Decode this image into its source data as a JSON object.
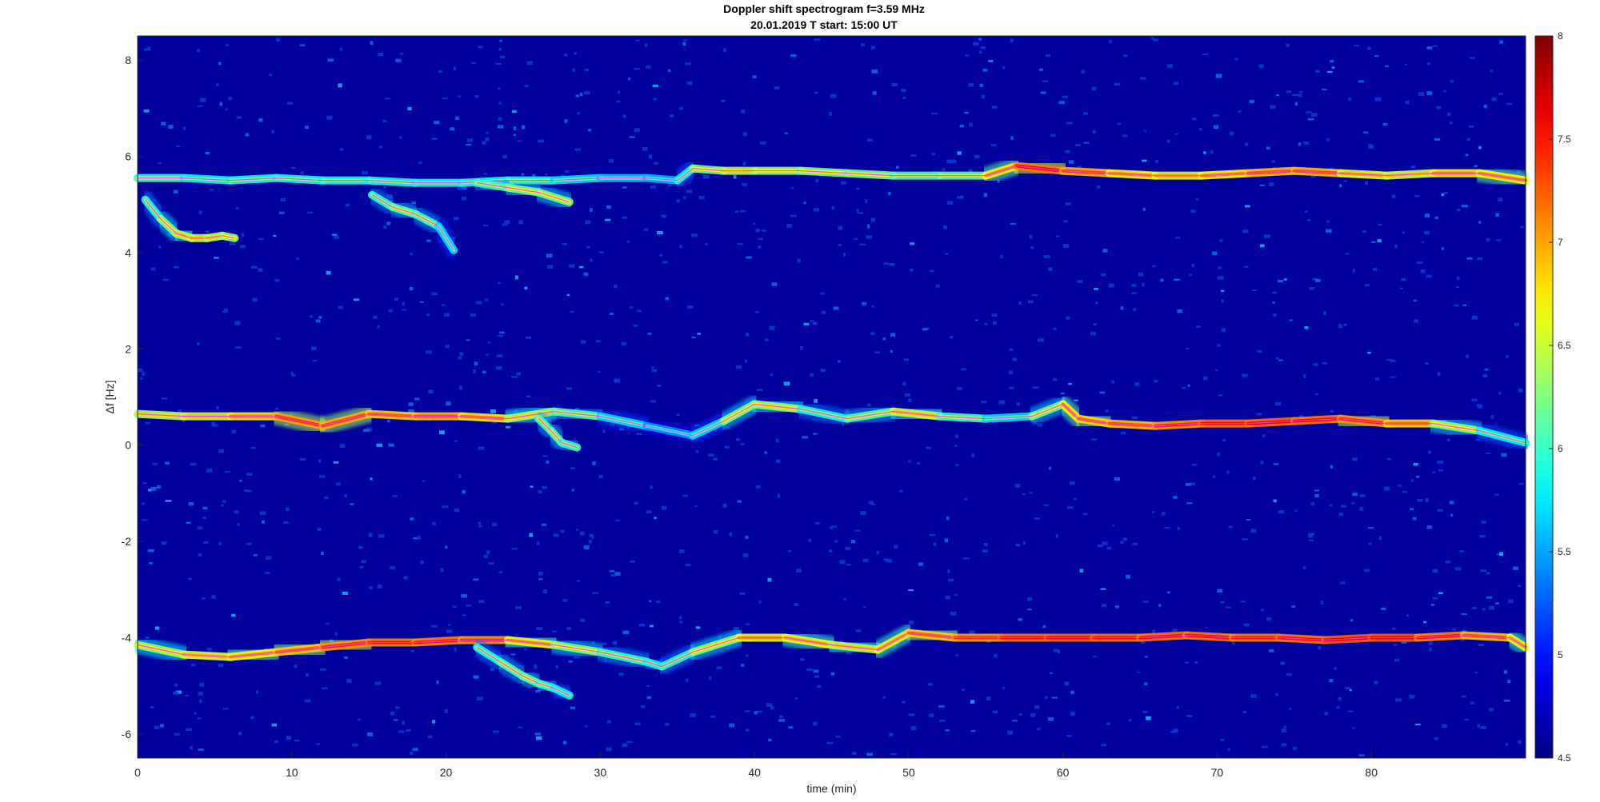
{
  "chart_data": {
    "type": "heatmap",
    "title": "Doppler shift spectrogram f=3.59 MHz",
    "subtitle": "20.01.2019    T start: 15:00 UT",
    "xlabel": "time (min)",
    "ylabel": "Δf [Hz]",
    "xlim": [
      0,
      90
    ],
    "ylim": [
      -6.5,
      8.5
    ],
    "x_ticks": [
      "0",
      "10",
      "20",
      "30",
      "40",
      "50",
      "60",
      "70",
      "80"
    ],
    "y_ticks": [
      "-6",
      "-4",
      "-2",
      "0",
      "2",
      "4",
      "6",
      "8"
    ],
    "colorbar": {
      "colormap": "jet",
      "range": [
        4.5,
        8
      ],
      "ticks": [
        "4.5",
        "5",
        "5.5",
        "6",
        "6.5",
        "7",
        "7.5",
        "8"
      ]
    },
    "background_level": 4.6,
    "traces": [
      {
        "name": "",
        "x": [
          0,
          3,
          6,
          9,
          12,
          15,
          18,
          21,
          24,
          27,
          30,
          33,
          35,
          36,
          38,
          40,
          43,
          46,
          49,
          52,
          55,
          57,
          60,
          63,
          66,
          69,
          72,
          75,
          78,
          81,
          84,
          87,
          90
        ],
        "y": [
          5.55,
          5.55,
          5.5,
          5.55,
          5.5,
          5.5,
          5.45,
          5.45,
          5.5,
          5.5,
          5.55,
          5.55,
          5.5,
          5.75,
          5.7,
          5.7,
          5.7,
          5.65,
          5.6,
          5.6,
          5.6,
          5.8,
          5.7,
          5.65,
          5.6,
          5.6,
          5.65,
          5.7,
          5.65,
          5.6,
          5.65,
          5.65,
          5.5
        ],
        "intensity": [
          6.5,
          6.2,
          6.2,
          6.3,
          6.2,
          6.3,
          6.2,
          6.2,
          6.3,
          6.2,
          6.0,
          6.0,
          5.9,
          6.5,
          6.8,
          6.8,
          6.6,
          6.7,
          6.5,
          6.4,
          6.6,
          7.6,
          7.5,
          7.2,
          7.0,
          7.0,
          7.2,
          7.4,
          7.2,
          6.8,
          7.0,
          7.2,
          7.0
        ]
      },
      {
        "name": "",
        "x": [
          0,
          3,
          6,
          9,
          12,
          15,
          18,
          21,
          24,
          27,
          30,
          33,
          36,
          38,
          40,
          43,
          46,
          49,
          52,
          55,
          58,
          60,
          61,
          63,
          66,
          69,
          72,
          75,
          78,
          81,
          84,
          87,
          90
        ],
        "y": [
          0.65,
          0.6,
          0.6,
          0.6,
          0.4,
          0.65,
          0.6,
          0.6,
          0.55,
          0.7,
          0.6,
          0.4,
          0.2,
          0.5,
          0.85,
          0.75,
          0.55,
          0.7,
          0.6,
          0.55,
          0.6,
          0.85,
          0.55,
          0.45,
          0.4,
          0.45,
          0.45,
          0.5,
          0.55,
          0.45,
          0.45,
          0.3,
          0.05
        ],
        "intensity": [
          6.8,
          6.8,
          7.0,
          7.3,
          7.5,
          7.2,
          7.3,
          7.3,
          7.0,
          6.6,
          6.3,
          5.9,
          5.8,
          6.4,
          6.9,
          6.6,
          6.0,
          7.0,
          6.8,
          6.0,
          6.2,
          7.0,
          7.2,
          7.2,
          7.4,
          7.5,
          7.6,
          7.6,
          7.5,
          7.4,
          7.0,
          6.4,
          6.0
        ]
      },
      {
        "name": "",
        "x": [
          0,
          3,
          6,
          9,
          12,
          15,
          18,
          21,
          24,
          27,
          30,
          33,
          34,
          36,
          39,
          42,
          45,
          48,
          50,
          53,
          56,
          59,
          62,
          65,
          68,
          71,
          74,
          77,
          80,
          83,
          86,
          89,
          90
        ],
        "y": [
          -4.15,
          -4.35,
          -4.4,
          -4.3,
          -4.2,
          -4.1,
          -4.1,
          -4.05,
          -4.05,
          -4.15,
          -4.3,
          -4.5,
          -4.6,
          -4.3,
          -4.0,
          -4.0,
          -4.15,
          -4.25,
          -3.9,
          -4.0,
          -4.0,
          -4.0,
          -4.0,
          -4.0,
          -3.95,
          -4.0,
          -4.0,
          -4.05,
          -4.0,
          -4.0,
          -3.95,
          -4.0,
          -4.2
        ],
        "intensity": [
          6.6,
          6.9,
          7.0,
          7.1,
          7.4,
          7.5,
          7.5,
          7.5,
          7.3,
          6.8,
          6.5,
          6.3,
          6.2,
          6.4,
          7.0,
          7.1,
          6.9,
          6.8,
          7.2,
          7.3,
          7.5,
          7.6,
          7.6,
          7.5,
          7.6,
          7.5,
          7.5,
          7.6,
          7.7,
          7.6,
          7.4,
          7.2,
          6.8
        ]
      },
      {
        "name": "",
        "x": [
          0.5,
          1.5,
          2.5,
          3.5,
          4.5,
          5.5,
          6.3
        ],
        "y": [
          5.1,
          4.7,
          4.4,
          4.3,
          4.3,
          4.35,
          4.3
        ],
        "intensity": [
          6.2,
          6.5,
          6.8,
          6.9,
          6.9,
          6.8,
          6.6
        ]
      },
      {
        "name": "",
        "x": [
          15.2,
          16.5,
          18,
          19.5,
          20.5
        ],
        "y": [
          5.2,
          4.95,
          4.8,
          4.55,
          4.05
        ],
        "intensity": [
          6.2,
          6.5,
          6.6,
          6.3,
          5.9
        ]
      },
      {
        "name": "",
        "x": [
          22,
          24,
          26,
          28
        ],
        "y": [
          5.45,
          5.35,
          5.25,
          5.05
        ],
        "intensity": [
          6.3,
          6.5,
          6.8,
          6.5
        ]
      },
      {
        "name": "",
        "x": [
          22,
          23.5,
          25,
          26,
          27,
          28
        ],
        "y": [
          -4.2,
          -4.5,
          -4.8,
          -4.95,
          -5.05,
          -5.2
        ],
        "intensity": [
          6.2,
          6.4,
          6.6,
          6.5,
          6.3,
          6.1
        ]
      },
      {
        "name": "",
        "x": [
          26,
          26.8,
          27.5,
          28.5
        ],
        "y": [
          0.55,
          0.3,
          0.05,
          -0.05
        ],
        "intensity": [
          6.4,
          6.6,
          6.5,
          6.2
        ]
      }
    ]
  }
}
